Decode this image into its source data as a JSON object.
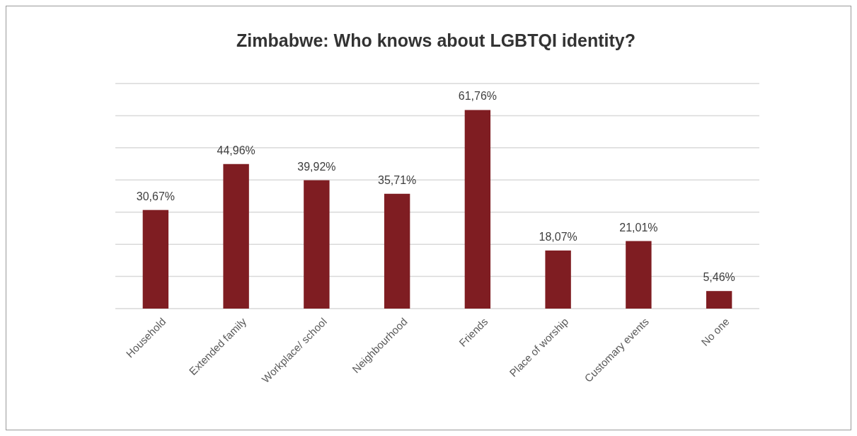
{
  "chart_data": {
    "type": "bar",
    "title": "Zimbabwe: Who knows about LGBTQI identity?",
    "categories": [
      "Household",
      "Extended family",
      "Workplace/ school",
      "Neighbourhood",
      "Friends",
      "Place of worship",
      "Customary events",
      "No one"
    ],
    "values": [
      30.67,
      44.96,
      39.92,
      35.71,
      61.76,
      18.07,
      21.01,
      5.46
    ],
    "value_labels": [
      "30,67%",
      "44,96%",
      "39,92%",
      "35,71%",
      "61,76%",
      "18,07%",
      "21,01%",
      "5,46%"
    ],
    "color": "#7f1d22",
    "ylim": [
      0,
      70
    ],
    "yticks": [
      {
        "value": 0,
        "label": null
      },
      {
        "value": 10,
        "label": null
      },
      {
        "value": 20,
        "label": null
      },
      {
        "value": 30,
        "label": null
      },
      {
        "value": 40,
        "label": null
      },
      {
        "value": 50,
        "label": null
      },
      {
        "value": 60,
        "label": null
      },
      {
        "value": 70,
        "label": null
      }
    ],
    "grid": "y",
    "tick_labels": "x"
  }
}
